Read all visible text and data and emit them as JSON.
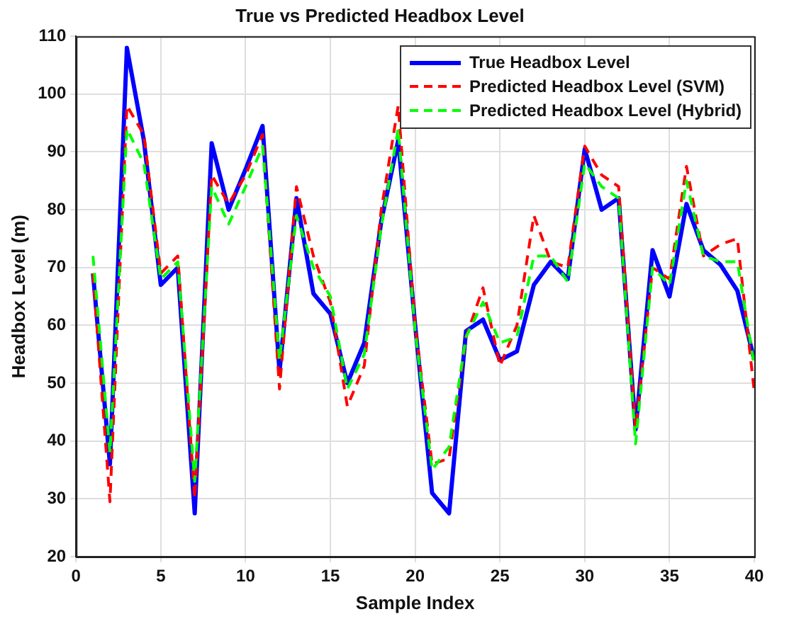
{
  "chart_data": {
    "type": "line",
    "title": "True vs Predicted Headbox Level",
    "xlabel": "Sample Index",
    "ylabel": "Headbox Level (m)",
    "x": [
      1,
      2,
      3,
      4,
      5,
      6,
      7,
      8,
      9,
      10,
      11,
      12,
      13,
      14,
      15,
      16,
      17,
      18,
      19,
      20,
      21,
      22,
      23,
      24,
      25,
      26,
      27,
      28,
      29,
      30,
      31,
      32,
      33,
      34,
      35,
      36,
      37,
      38,
      39,
      40
    ],
    "series": [
      {
        "name": "True Headbox Level",
        "color": "#0000ff",
        "line_style": "solid",
        "values": [
          69,
          36,
          108,
          92,
          67,
          70,
          27.5,
          91.5,
          80,
          87,
          94.5,
          52,
          82,
          65.5,
          62,
          50,
          57,
          78,
          92,
          60,
          31,
          27.5,
          59,
          61,
          54,
          55.5,
          67,
          71,
          68,
          90.5,
          80,
          82,
          42,
          73,
          65,
          81,
          73,
          70.5,
          66,
          54
        ]
      },
      {
        "name": "Predicted Headbox Level (SVM)",
        "color": "#ff0000",
        "line_style": "dashed",
        "values": [
          69,
          29.5,
          98,
          93,
          69,
          72,
          30,
          86,
          81,
          86,
          93,
          49,
          84,
          72,
          64,
          46,
          53,
          80,
          98,
          60,
          36,
          37,
          58,
          66.5,
          53,
          60,
          79,
          71,
          70,
          91,
          86,
          84,
          42,
          70,
          68,
          87.5,
          72,
          74,
          75,
          48.5
        ]
      },
      {
        "name": "Predicted Headbox Level (Hybrid)",
        "color": "#00ff00",
        "line_style": "dashed",
        "values": [
          72,
          38,
          94,
          88,
          68,
          71,
          33,
          84,
          77.5,
          84,
          91,
          54,
          79,
          70,
          65,
          49,
          55,
          77,
          94,
          59,
          35,
          39,
          58,
          64,
          57,
          58,
          72,
          72,
          67.5,
          88,
          84,
          82,
          39.5,
          70,
          67,
          85,
          72,
          71,
          71,
          53
        ]
      }
    ],
    "xlim": [
      0,
      40
    ],
    "xticks": [
      0,
      5,
      10,
      15,
      20,
      25,
      30,
      35,
      40
    ],
    "ylim": [
      20,
      110
    ],
    "yticks": [
      20,
      30,
      40,
      50,
      60,
      70,
      80,
      90,
      100,
      110
    ],
    "grid": true,
    "legend": "top right",
    "marker": "none"
  }
}
